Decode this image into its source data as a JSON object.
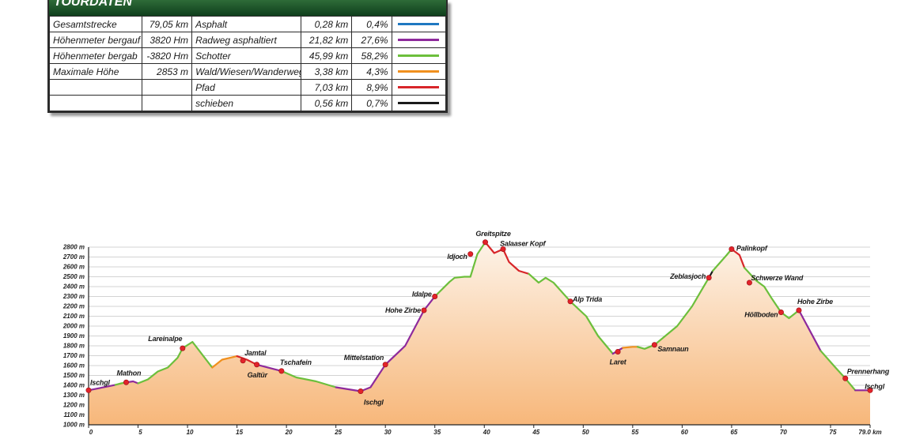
{
  "tourdaten": {
    "title": "TOURDATEN",
    "stats": [
      {
        "label": "Gesamtstrecke",
        "value": "79,05 km"
      },
      {
        "label": "Höhenmeter bergauf",
        "value": "3820 Hm"
      },
      {
        "label": "Höhenmeter bergab",
        "value": "-3820 Hm"
      },
      {
        "label": "Maximale Höhe",
        "value": "2853 m"
      },
      {
        "label": "",
        "value": ""
      },
      {
        "label": "",
        "value": ""
      }
    ],
    "surfaces": [
      {
        "name": "Asphalt",
        "km": "0,28 km",
        "pct": "0,4%",
        "color": "#1f78c1"
      },
      {
        "name": "Radweg asphaltiert",
        "km": "21,82 km",
        "pct": "27,6%",
        "color": "#8e2a9c"
      },
      {
        "name": "Schotter",
        "km": "45,99 km",
        "pct": "58,2%",
        "color": "#6cbf3c"
      },
      {
        "name": "Wald/Wiesen/Wanderweg",
        "km": "3,38 km",
        "pct": "4,3%",
        "color": "#f0901e"
      },
      {
        "name": "Pfad",
        "km": "7,03 km",
        "pct": "8,9%",
        "color": "#d8262a"
      },
      {
        "name": "schieben",
        "km": "0,56 km",
        "pct": "0,7%",
        "color": "#1a1a1a"
      }
    ]
  },
  "chart_data": {
    "type": "area",
    "xlim": [
      0,
      79.0
    ],
    "ylim": [
      1000,
      2800
    ],
    "x_ticks": [
      "0",
      "5",
      "10",
      "15",
      "20",
      "25",
      "30",
      "35",
      "40",
      "45",
      "50",
      "55",
      "60",
      "65",
      "70",
      "75",
      "79.0 km"
    ],
    "x_tick_values": [
      0,
      5,
      10,
      15,
      20,
      25,
      30,
      35,
      40,
      45,
      50,
      55,
      60,
      65,
      70,
      75,
      79
    ],
    "y_ticks": [
      "1000 m",
      "1100 m",
      "1200 m",
      "1300 m",
      "1400 m",
      "1500 m",
      "1600 m",
      "1700 m",
      "1800 m",
      "1900 m",
      "2000 m",
      "2100 m",
      "2200 m",
      "2300 m",
      "2400 m",
      "2500 m",
      "2600 m",
      "2700 m",
      "2800 m"
    ],
    "y_tick_values": [
      1000,
      1100,
      1200,
      1300,
      1400,
      1500,
      1600,
      1700,
      1800,
      1900,
      2000,
      2100,
      2200,
      2300,
      2400,
      2500,
      2600,
      2700,
      2800
    ],
    "grid": true,
    "segments": [
      {
        "surface": "Radweg asphaltiert",
        "color": "#8e2a9c",
        "points": [
          [
            0,
            1350
          ],
          [
            2,
            1390
          ],
          [
            2.7,
            1405
          ]
        ]
      },
      {
        "surface": "Schotter",
        "color": "#6cbf3c",
        "points": [
          [
            2.7,
            1405
          ],
          [
            3.3,
            1420
          ],
          [
            3.8,
            1430
          ]
        ]
      },
      {
        "surface": "Radweg asphaltiert",
        "color": "#8e2a9c",
        "points": [
          [
            3.8,
            1430
          ],
          [
            4.5,
            1440
          ],
          [
            5,
            1420
          ]
        ]
      },
      {
        "surface": "Schotter",
        "color": "#6cbf3c",
        "points": [
          [
            5,
            1420
          ],
          [
            6,
            1460
          ],
          [
            7,
            1540
          ],
          [
            8,
            1580
          ],
          [
            9,
            1680
          ],
          [
            9.5,
            1775
          ],
          [
            10.5,
            1840
          ],
          [
            12.5,
            1580
          ]
        ]
      },
      {
        "surface": "Wald/Wiesen/Wanderweg",
        "color": "#f0901e",
        "points": [
          [
            12.5,
            1580
          ],
          [
            13.5,
            1660
          ],
          [
            15,
            1695
          ]
        ]
      },
      {
        "surface": "Pfad",
        "color": "#d8262a",
        "points": [
          [
            15,
            1695
          ],
          [
            16,
            1660
          ],
          [
            17,
            1610
          ]
        ]
      },
      {
        "surface": "Radweg asphaltiert",
        "color": "#8e2a9c",
        "points": [
          [
            17,
            1610
          ],
          [
            19.5,
            1545
          ]
        ]
      },
      {
        "surface": "Schotter",
        "color": "#6cbf3c",
        "points": [
          [
            19.5,
            1545
          ],
          [
            21,
            1480
          ],
          [
            23,
            1440
          ],
          [
            25,
            1380
          ]
        ]
      },
      {
        "surface": "Radweg asphaltiert",
        "color": "#8e2a9c",
        "points": [
          [
            25,
            1380
          ],
          [
            27.5,
            1340
          ],
          [
            28.5,
            1380
          ],
          [
            30,
            1610
          ],
          [
            32,
            1800
          ],
          [
            33.9,
            2160
          ],
          [
            35,
            2300
          ]
        ]
      },
      {
        "surface": "Schotter",
        "color": "#6cbf3c",
        "points": [
          [
            35,
            2300
          ],
          [
            36.5,
            2450
          ],
          [
            37,
            2490
          ],
          [
            38,
            2500
          ],
          [
            38.6,
            2500
          ],
          [
            39.3,
            2730
          ],
          [
            40.1,
            2850
          ]
        ]
      },
      {
        "surface": "Pfad",
        "color": "#d8262a",
        "points": [
          [
            40.1,
            2850
          ],
          [
            41,
            2740
          ],
          [
            41.9,
            2780
          ],
          [
            42.5,
            2650
          ],
          [
            43.5,
            2560
          ],
          [
            44.5,
            2530
          ]
        ]
      },
      {
        "surface": "Schotter",
        "color": "#6cbf3c",
        "points": [
          [
            44.5,
            2530
          ],
          [
            45.5,
            2440
          ],
          [
            46.2,
            2490
          ],
          [
            47,
            2440
          ],
          [
            48.7,
            2250
          ],
          [
            50.3,
            2100
          ],
          [
            51.5,
            1900
          ],
          [
            53,
            1720
          ]
        ]
      },
      {
        "surface": "Radweg asphaltiert",
        "color": "#8e2a9c",
        "points": [
          [
            53,
            1720
          ],
          [
            54,
            1780
          ]
        ]
      },
      {
        "surface": "Wald/Wiesen/Wanderweg",
        "color": "#f0901e",
        "points": [
          [
            54,
            1780
          ],
          [
            55,
            1790
          ],
          [
            55.5,
            1790
          ]
        ]
      },
      {
        "surface": "Schotter",
        "color": "#6cbf3c",
        "points": [
          [
            55.5,
            1790
          ],
          [
            56.2,
            1770
          ],
          [
            57.2,
            1810
          ],
          [
            59.5,
            2000
          ],
          [
            61,
            2200
          ],
          [
            62.7,
            2490
          ]
        ]
      },
      {
        "surface": "schieben",
        "color": "#1a1a1a",
        "points": [
          [
            62.7,
            2490
          ],
          [
            63.1,
            2560
          ]
        ]
      },
      {
        "surface": "Schotter",
        "color": "#6cbf3c",
        "points": [
          [
            63.1,
            2560
          ],
          [
            64.5,
            2720
          ],
          [
            65,
            2780
          ]
        ]
      },
      {
        "surface": "Pfad",
        "color": "#d8262a",
        "points": [
          [
            65,
            2780
          ],
          [
            65.8,
            2720
          ],
          [
            66.3,
            2590
          ]
        ]
      },
      {
        "surface": "Schotter",
        "color": "#6cbf3c",
        "points": [
          [
            66.3,
            2590
          ],
          [
            67.5,
            2460
          ],
          [
            68.3,
            2400
          ],
          [
            69,
            2290
          ],
          [
            70,
            2140
          ],
          [
            70.8,
            2080
          ],
          [
            71.8,
            2160
          ]
        ]
      },
      {
        "surface": "Radweg asphaltiert",
        "color": "#8e2a9c",
        "points": [
          [
            71.8,
            2160
          ],
          [
            74,
            1750
          ]
        ]
      },
      {
        "surface": "Schotter",
        "color": "#6cbf3c",
        "points": [
          [
            74,
            1750
          ],
          [
            75.5,
            1580
          ],
          [
            76.5,
            1470
          ],
          [
            77.5,
            1350
          ]
        ]
      },
      {
        "surface": "Radweg asphaltiert",
        "color": "#8e2a9c",
        "points": [
          [
            77.5,
            1350
          ],
          [
            79,
            1350
          ]
        ]
      }
    ],
    "waypoints": [
      {
        "name": "Ischgl",
        "x": 0,
        "y": 1350,
        "anchor": "start",
        "dx": 2,
        "dy": -10
      },
      {
        "name": "Mathon",
        "x": 3.8,
        "y": 1430,
        "anchor": "start",
        "dx": -12,
        "dy": -12
      },
      {
        "name": "Lareinalpe",
        "x": 9.5,
        "y": 1775,
        "anchor": "middle",
        "dx": -22,
        "dy": -12
      },
      {
        "name": "Jamtal",
        "x": 15.6,
        "y": 1650,
        "anchor": "start",
        "dx": 2,
        "dy": -10
      },
      {
        "name": "Galtür",
        "x": 17,
        "y": 1610,
        "anchor": "start",
        "dx": -12,
        "dy": 13
      },
      {
        "name": "Tschafein",
        "x": 19.5,
        "y": 1545,
        "anchor": "start",
        "dx": -2,
        "dy": -11
      },
      {
        "name": "Ischgl",
        "x": 27.5,
        "y": 1340,
        "anchor": "start",
        "dx": 4,
        "dy": 14
      },
      {
        "name": "Mittelstation",
        "x": 30,
        "y": 1610,
        "anchor": "end",
        "dx": -2,
        "dy": -9
      },
      {
        "name": "Hohe Zirbe",
        "x": 33.9,
        "y": 2160,
        "anchor": "end",
        "dx": -4,
        "dy": 0
      },
      {
        "name": "Idalpe",
        "x": 35,
        "y": 2300,
        "anchor": "end",
        "dx": -4,
        "dy": -3
      },
      {
        "name": "Idjoch",
        "x": 38.6,
        "y": 2730,
        "anchor": "end",
        "dx": -4,
        "dy": 3
      },
      {
        "name": "Greitspitze",
        "x": 40.1,
        "y": 2850,
        "anchor": "middle",
        "dx": 10,
        "dy": -11
      },
      {
        "name": "Salaaser Kopf",
        "x": 41.9,
        "y": 2780,
        "anchor": "start",
        "dx": -4,
        "dy": -7
      },
      {
        "name": "Alp Trida",
        "x": 48.7,
        "y": 2250,
        "anchor": "start",
        "dx": 3,
        "dy": -3
      },
      {
        "name": "Laret",
        "x": 53.5,
        "y": 1740,
        "anchor": "middle",
        "dx": 0,
        "dy": 13
      },
      {
        "name": "Samnaun",
        "x": 57.2,
        "y": 1810,
        "anchor": "start",
        "dx": 4,
        "dy": 5
      },
      {
        "name": "Zeblasjoch",
        "x": 62.7,
        "y": 2490,
        "anchor": "end",
        "dx": -4,
        "dy": -2
      },
      {
        "name": "Palinkopf",
        "x": 65,
        "y": 2780,
        "anchor": "start",
        "dx": 6,
        "dy": -1
      },
      {
        "name": "Schwerze Wand",
        "x": 66.8,
        "y": 2440,
        "anchor": "start",
        "dx": 2,
        "dy": -6
      },
      {
        "name": "Höllboden",
        "x": 70,
        "y": 2140,
        "anchor": "end",
        "dx": -4,
        "dy": 3
      },
      {
        "name": "Hohe Zirbe",
        "x": 71.8,
        "y": 2160,
        "anchor": "start",
        "dx": -2,
        "dy": -11
      },
      {
        "name": "Prennerhang",
        "x": 76.5,
        "y": 1470,
        "anchor": "start",
        "dx": 2,
        "dy": -9
      },
      {
        "name": "Ischgl",
        "x": 79,
        "y": 1350,
        "anchor": "end",
        "dx": 18,
        "dy": -5
      }
    ]
  }
}
